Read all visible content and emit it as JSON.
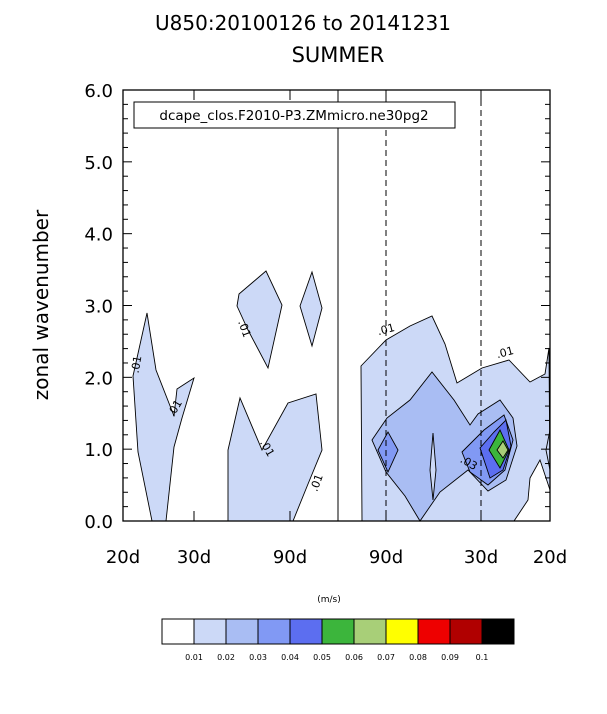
{
  "chart_data": {
    "type": "contour",
    "title": "U850:20100126 to 20141231",
    "subtitle": "SUMMER",
    "case_label": "dcape_clos.F2010-P3.ZMmicro.ne30pg2",
    "ylabel": "zonal wavenumber",
    "ylim": [
      0,
      6
    ],
    "yticks": [
      "0.0",
      "1.0",
      "2.0",
      "3.0",
      "4.0",
      "5.0",
      "6.0"
    ],
    "xticks": [
      "20d",
      "30d",
      "90d",
      "90d",
      "30d",
      "20d"
    ],
    "contour_labels": [
      ".01",
      ".01",
      ".01",
      ".01",
      ".01",
      ".01",
      ".01",
      ".03"
    ],
    "colorbar": {
      "units": "(m/s)",
      "levels": [
        "0.01",
        "0.02",
        "0.03",
        "0.04",
        "0.05",
        "0.06",
        "0.07",
        "0.08",
        "0.09",
        "0.1"
      ],
      "colors": [
        "#ffffff",
        "#ccd9f7",
        "#a9bdf3",
        "#8199f4",
        "#5c6ef0",
        "#3cb53c",
        "#a8cf78",
        "#ffff00",
        "#ee0000",
        "#b00000",
        "#000000"
      ]
    }
  }
}
